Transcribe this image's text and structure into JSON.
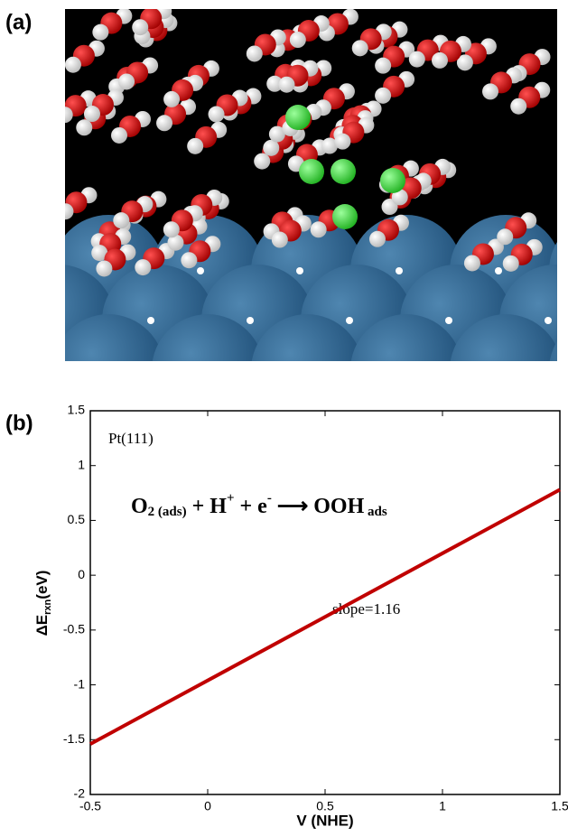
{
  "panel_labels": [
    "(a)",
    "(b)"
  ],
  "chart_data": {
    "type": "line",
    "xlabel": "V (NHE)",
    "ylabel": [
      "ΔE",
      "rxn",
      "(eV)"
    ],
    "annotations": {
      "surface": "Pt(111)",
      "slope": "slope=1.16",
      "equation": [
        "O",
        "2 (ads)",
        " + H",
        "+",
        " + e",
        "-",
        " ⟶ OOH",
        " ads"
      ]
    },
    "x": [
      -0.5,
      1.5
    ],
    "series": [
      {
        "name": "ΔE",
        "color": "#c00000",
        "values": [
          -1.54,
          0.78
        ]
      }
    ],
    "xlim": [
      -0.5,
      1.5
    ],
    "xticks": [
      -0.5,
      0,
      0.5,
      1,
      1.5
    ],
    "ylim": [
      -2,
      1.5
    ],
    "yticks": [
      -2,
      -1.5,
      -1,
      -0.5,
      0,
      0.5,
      1,
      1.5
    ],
    "grid": false
  }
}
